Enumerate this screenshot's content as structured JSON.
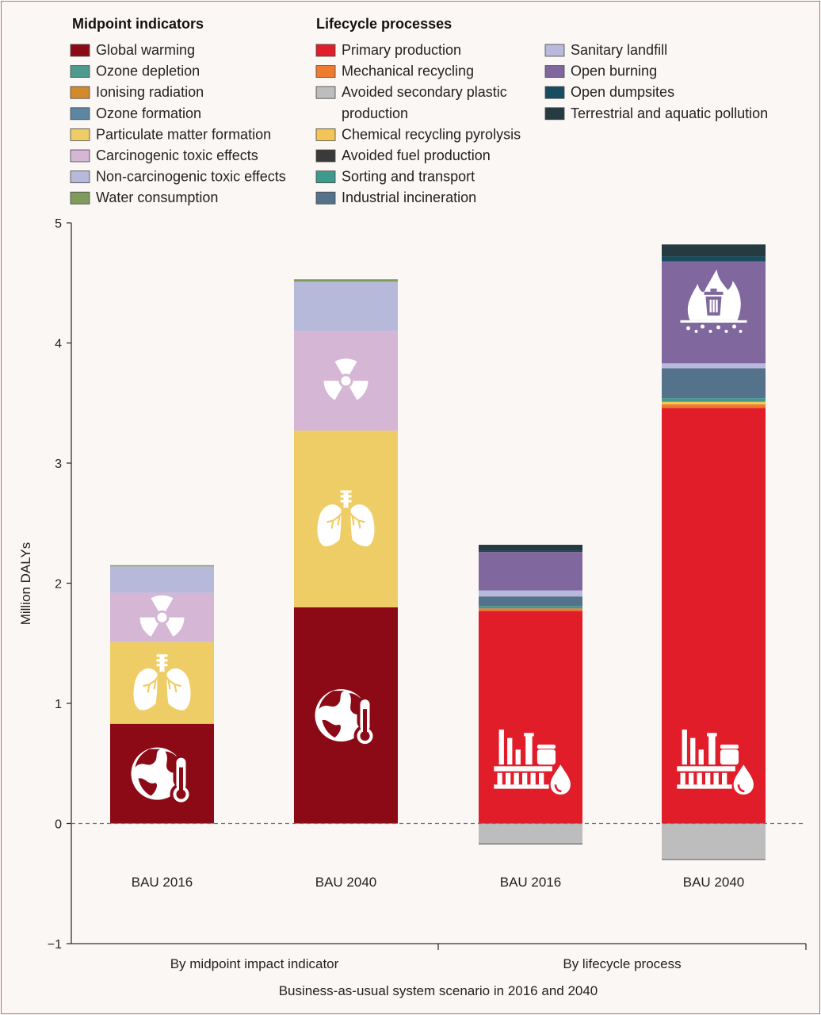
{
  "colors": {
    "global_warming": "#8b0a16",
    "ozone_depletion": "#4f9a8f",
    "ionising_radiation": "#d28a2c",
    "ozone_formation": "#5d86a3",
    "particulate_matter": "#efcd66",
    "carcinogenic": "#d5b6d5",
    "non_carcinogenic": "#b7b9da",
    "water": "#7f9c5c",
    "primary_production": "#e11d2a",
    "mechanical_recycling": "#ef7b2f",
    "avoided_secondary": "#bdbdbd",
    "chemical_pyrolysis": "#f3c556",
    "avoided_fuel": "#3a3a3a",
    "sorting_transport": "#3f9a8e",
    "industrial_incineration": "#55728d",
    "sanitary_landfill": "#b8b9dc",
    "open_burning": "#80689e",
    "open_dumpsites": "#174d60",
    "terrestrial_aquatic": "#263a42",
    "axis": "#333333",
    "zero_line": "#5a7e96"
  },
  "legend": {
    "midpoint_title": "Midpoint indicators",
    "process_title": "Lifecycle processes",
    "midpoint_items": [
      {
        "label": "Global warming",
        "color_key": "global_warming"
      },
      {
        "label": "Ozone depletion",
        "color_key": "ozone_depletion"
      },
      {
        "label": "Ionising radiation",
        "color_key": "ionising_radiation"
      },
      {
        "label": "Ozone formation",
        "color_key": "ozone_formation"
      },
      {
        "label": "Particulate matter formation",
        "color_key": "particulate_matter"
      },
      {
        "label": "Carcinogenic toxic effects",
        "color_key": "carcinogenic"
      },
      {
        "label": "Non-carcinogenic toxic effects",
        "color_key": "non_carcinogenic"
      },
      {
        "label": "Water consumption",
        "color_key": "water"
      }
    ],
    "process_items_col1": [
      {
        "label": "Primary production",
        "color_key": "primary_production"
      },
      {
        "label": "Mechanical recycling",
        "color_key": "mechanical_recycling"
      },
      {
        "label": "Avoided secondary plastic",
        "label2": "production",
        "color_key": "avoided_secondary"
      },
      {
        "label": "Chemical recycling pyrolysis",
        "color_key": "chemical_pyrolysis"
      },
      {
        "label": "Avoided fuel production",
        "color_key": "avoided_fuel"
      },
      {
        "label": "Sorting and transport",
        "color_key": "sorting_transport"
      },
      {
        "label": "Industrial incineration",
        "color_key": "industrial_incineration"
      }
    ],
    "process_items_col2": [
      {
        "label": "Sanitary landfill",
        "color_key": "sanitary_landfill"
      },
      {
        "label": "Open burning",
        "color_key": "open_burning"
      },
      {
        "label": "Open dumpsites",
        "color_key": "open_dumpsites"
      },
      {
        "label": "Terrestrial and aquatic pollution",
        "color_key": "terrestrial_aquatic"
      }
    ]
  },
  "chart_data": {
    "type": "bar",
    "stacked": true,
    "ylabel": "Million DALYs",
    "xlabel": "Business-as-usual system scenario in 2016 and 2040",
    "ylim": [
      -1,
      5
    ],
    "yticks": [
      -1,
      0,
      1,
      2,
      3,
      4,
      5
    ],
    "zero_line": "dashed",
    "groups": [
      {
        "label": "By midpoint impact indicator",
        "bar_indices": [
          0,
          1
        ]
      },
      {
        "label": "By lifecycle process",
        "bar_indices": [
          2,
          3
        ]
      }
    ],
    "bars": [
      {
        "category": "BAU 2016",
        "segments": [
          {
            "name": "Global warming",
            "color_key": "global_warming",
            "value": 0.83,
            "icon": "globe-thermometer-icon"
          },
          {
            "name": "Particulate matter formation",
            "color_key": "particulate_matter",
            "value": 0.68,
            "icon": "lungs-icon"
          },
          {
            "name": "Carcinogenic toxic effects",
            "color_key": "carcinogenic",
            "value": 0.41,
            "icon": "radiation-icon"
          },
          {
            "name": "Non-carcinogenic toxic effects",
            "color_key": "non_carcinogenic",
            "value": 0.22
          },
          {
            "name": "Water consumption",
            "color_key": "water",
            "value": 0.01
          }
        ]
      },
      {
        "category": "BAU 2040",
        "segments": [
          {
            "name": "Global warming",
            "color_key": "global_warming",
            "value": 1.8,
            "icon": "globe-thermometer-icon"
          },
          {
            "name": "Particulate matter formation",
            "color_key": "particulate_matter",
            "value": 1.47,
            "icon": "lungs-icon"
          },
          {
            "name": "Carcinogenic toxic effects",
            "color_key": "carcinogenic",
            "value": 0.83,
            "icon": "radiation-icon"
          },
          {
            "name": "Non-carcinogenic toxic effects",
            "color_key": "non_carcinogenic",
            "value": 0.41
          },
          {
            "name": "Water consumption",
            "color_key": "water",
            "value": 0.02
          }
        ]
      },
      {
        "category": "BAU 2016",
        "segments": [
          {
            "name": "Avoided secondary plastic production",
            "color_key": "avoided_secondary",
            "value": -0.17
          },
          {
            "name": "Primary production",
            "color_key": "primary_production",
            "value": 1.77,
            "icon": "factory-icon"
          },
          {
            "name": "Mechanical recycling",
            "color_key": "mechanical_recycling",
            "value": 0.02
          },
          {
            "name": "Sorting and transport",
            "color_key": "sorting_transport",
            "value": 0.02
          },
          {
            "name": "Industrial incineration",
            "color_key": "industrial_incineration",
            "value": 0.08
          },
          {
            "name": "Sanitary landfill",
            "color_key": "sanitary_landfill",
            "value": 0.05
          },
          {
            "name": "Open burning",
            "color_key": "open_burning",
            "value": 0.32
          },
          {
            "name": "Open dumpsites",
            "color_key": "open_dumpsites",
            "value": 0.01
          },
          {
            "name": "Terrestrial and aquatic pollution",
            "color_key": "terrestrial_aquatic",
            "value": 0.05
          }
        ]
      },
      {
        "category": "BAU 2040",
        "segments": [
          {
            "name": "Avoided secondary plastic production",
            "color_key": "avoided_secondary",
            "value": -0.3
          },
          {
            "name": "Primary production",
            "color_key": "primary_production",
            "value": 3.46,
            "icon": "factory-icon"
          },
          {
            "name": "Mechanical recycling",
            "color_key": "mechanical_recycling",
            "value": 0.03
          },
          {
            "name": "Chemical recycling pyrolysis",
            "color_key": "chemical_pyrolysis",
            "value": 0.02
          },
          {
            "name": "Sorting and transport",
            "color_key": "sorting_transport",
            "value": 0.03
          },
          {
            "name": "Industrial incineration",
            "color_key": "industrial_incineration",
            "value": 0.25
          },
          {
            "name": "Sanitary landfill",
            "color_key": "sanitary_landfill",
            "value": 0.04
          },
          {
            "name": "Open burning",
            "color_key": "open_burning",
            "value": 0.85,
            "icon": "burning-trash-icon"
          },
          {
            "name": "Open dumpsites",
            "color_key": "open_dumpsites",
            "value": 0.04
          },
          {
            "name": "Terrestrial and aquatic pollution",
            "color_key": "terrestrial_aquatic",
            "value": 0.1
          }
        ]
      }
    ]
  }
}
